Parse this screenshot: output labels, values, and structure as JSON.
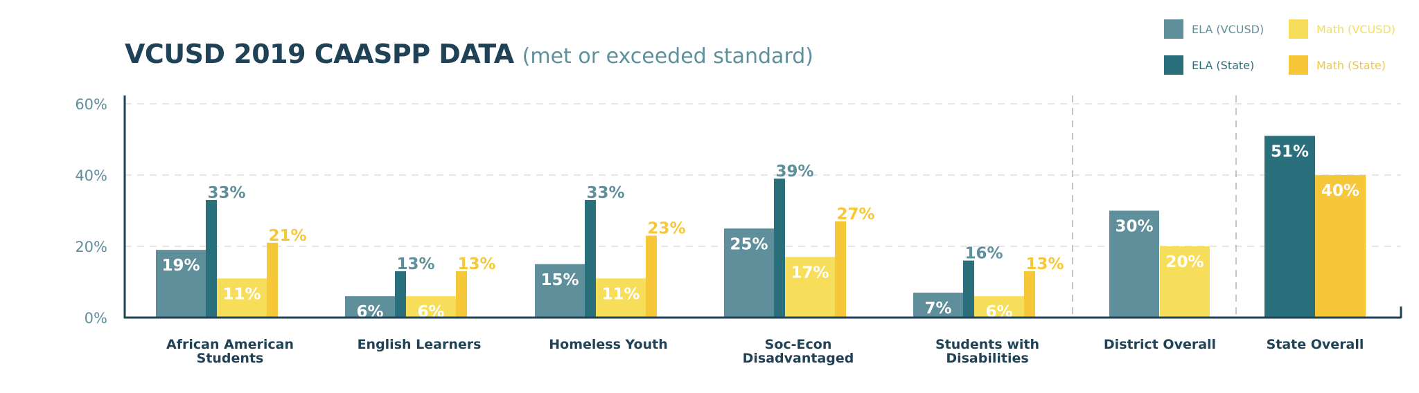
{
  "title": "VCUSD 2019 CAASPP DATA",
  "subtitle": "(met or exceeded standard)",
  "colors": {
    "ela_vcusd": "#5e8f9b",
    "ela_state": "#2a6f7c",
    "math_vcusd": "#f6dd5a",
    "math_state": "#f7c73a",
    "axis": "#1f4257",
    "tick_text": "#5e8f9b",
    "grid": "#e6e6e6",
    "category_text": "#1f4257"
  },
  "legend": [
    {
      "label": "ELA (VCUSD)",
      "color": "#5e8f9b",
      "text_color": "#5e8f9b"
    },
    {
      "label": "Math (VCUSD)",
      "color": "#f6dd5a",
      "text_color": "#f6dd5a"
    },
    {
      "label": "ELA (State)",
      "color": "#2a6f7c",
      "text_color": "#2a6f7c"
    },
    {
      "label": "Math (State)",
      "color": "#f7c73a",
      "text_color": "#f7c73a"
    }
  ],
  "chart_data": {
    "type": "bar",
    "ylim": [
      0,
      60
    ],
    "yticks": [
      0,
      20,
      40,
      60
    ],
    "ytick_labels": [
      "0%",
      "20%",
      "40%",
      "60%"
    ],
    "grid": true,
    "legend_position": "top-right",
    "categories": [
      "African American Students",
      "English Learners",
      "Homeless Youth",
      "Soc-Econ Disadvantaged",
      "Students with Disabilities",
      "District Overall",
      "State Overall"
    ],
    "category_lines": [
      [
        "African American",
        "Students"
      ],
      [
        "English Learners"
      ],
      [
        "Homeless Youth"
      ],
      [
        "Soc-Econ",
        "Disadvantaged"
      ],
      [
        "Students with",
        "Disabilities"
      ],
      [
        "District Overall"
      ],
      [
        "State Overall"
      ]
    ],
    "series": [
      {
        "name": "ELA (VCUSD)",
        "values": [
          19,
          6,
          15,
          25,
          7,
          30,
          null
        ],
        "labels": [
          "19%",
          "6%",
          "15%",
          "25%",
          "7%",
          "30%",
          ""
        ]
      },
      {
        "name": "ELA (State)",
        "values": [
          33,
          13,
          33,
          39,
          16,
          null,
          51
        ],
        "labels": [
          "33%",
          "13%",
          "33%",
          "39%",
          "16%",
          "",
          "51%"
        ]
      },
      {
        "name": "Math (VCUSD)",
        "values": [
          11,
          6,
          11,
          17,
          6,
          20,
          null
        ],
        "labels": [
          "11%",
          "6%",
          "11%",
          "17%",
          "6%",
          "20%",
          ""
        ]
      },
      {
        "name": "Math (State)",
        "values": [
          21,
          13,
          23,
          27,
          13,
          null,
          40
        ],
        "labels": [
          "21%",
          "13%",
          "23%",
          "27%",
          "13%",
          "",
          "40%"
        ]
      }
    ]
  }
}
